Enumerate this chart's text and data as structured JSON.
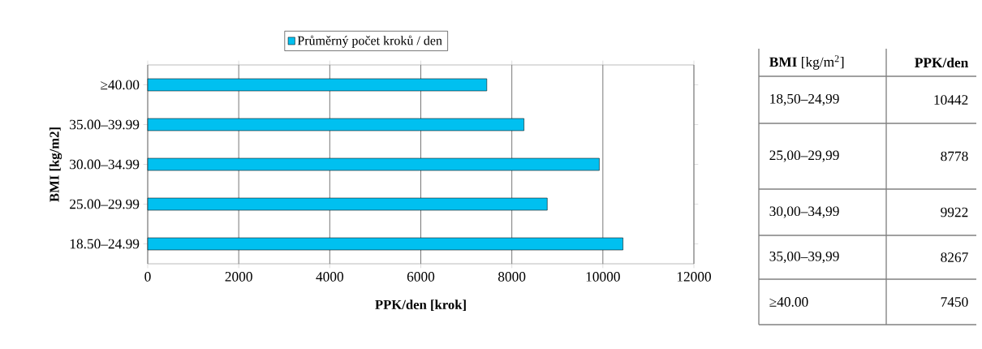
{
  "chart_data": [
    {
      "type": "bar",
      "orientation": "horizontal",
      "xlabel": "PPK/den [krok]",
      "ylabel": "BMI  [kg/m2]",
      "categories": [
        "≥40.00",
        "35.00–39.99",
        "30.00–34.99",
        "25.00–29.99",
        "18.50–24.99"
      ],
      "series": [
        {
          "name": "Průměrný počet kroků / den",
          "color": "#00c0f0",
          "values": [
            7450,
            8267,
            9922,
            8778,
            10442
          ]
        }
      ],
      "xlim": [
        0,
        12000
      ],
      "xticks": [
        0,
        2000,
        4000,
        6000,
        8000,
        10000,
        12000
      ],
      "grid": "x",
      "legend": "top"
    },
    {
      "type": "other",
      "xlabel": "**BMI** [kg/m$^{2}$]",
      "ylabel": "PPK/den",
      "categories": [
        "18,50–24,99",
        "25,00–29,99",
        "30,00–34,99",
        "35,00–39,99",
        "≥40.00"
      ],
      "values": [
        10442,
        8778,
        9922,
        8267,
        7450
      ],
      "data_labels": true
    }
  ]
}
